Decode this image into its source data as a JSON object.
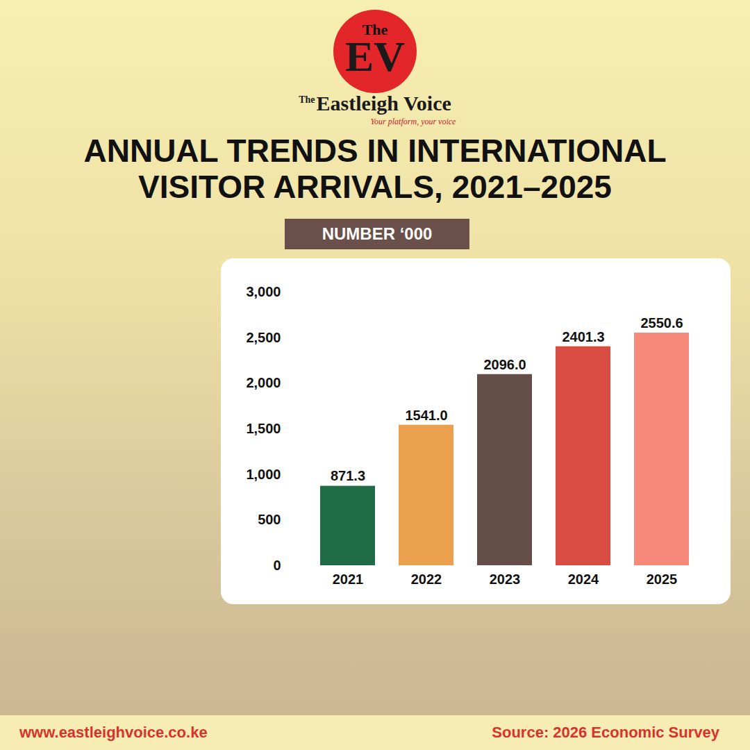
{
  "branding": {
    "logo_top": "The",
    "logo_mark": "EV",
    "name_prefix": "The",
    "name": "Eastleigh Voice",
    "tagline": "Your platform, your voice"
  },
  "chart_data": {
    "type": "bar",
    "title": "ANNUAL TRENDS IN INTERNATIONAL VISITOR ARRIVALS, 2021–2025",
    "subtitle": "NUMBER ‘000",
    "categories": [
      "2021",
      "2022",
      "2023",
      "2024",
      "2025"
    ],
    "values": [
      871.3,
      1541.0,
      2096.0,
      2401.3,
      2550.6
    ],
    "value_labels": [
      "871.3",
      "1541.0",
      "2096.0",
      "2401.3",
      "2550.6"
    ],
    "colors": [
      "#1e6b45",
      "#eaa04c",
      "#654e48",
      "#d94c41",
      "#f7897a"
    ],
    "ylim": [
      0,
      3000
    ],
    "yticks": [
      0,
      500,
      {
        "value": 1000,
        "label": "1,000"
      },
      {
        "value": 1500,
        "label": "1,500"
      },
      {
        "value": 2000,
        "label": "2,000"
      },
      {
        "value": 2500,
        "label": "2,500"
      },
      {
        "value": 3000,
        "label": "3,000"
      }
    ],
    "grid": false,
    "data_labels": true
  },
  "footer": {
    "url": "www.eastleighvoice.co.ke",
    "source": "Source: 2026 Economic Survey"
  }
}
